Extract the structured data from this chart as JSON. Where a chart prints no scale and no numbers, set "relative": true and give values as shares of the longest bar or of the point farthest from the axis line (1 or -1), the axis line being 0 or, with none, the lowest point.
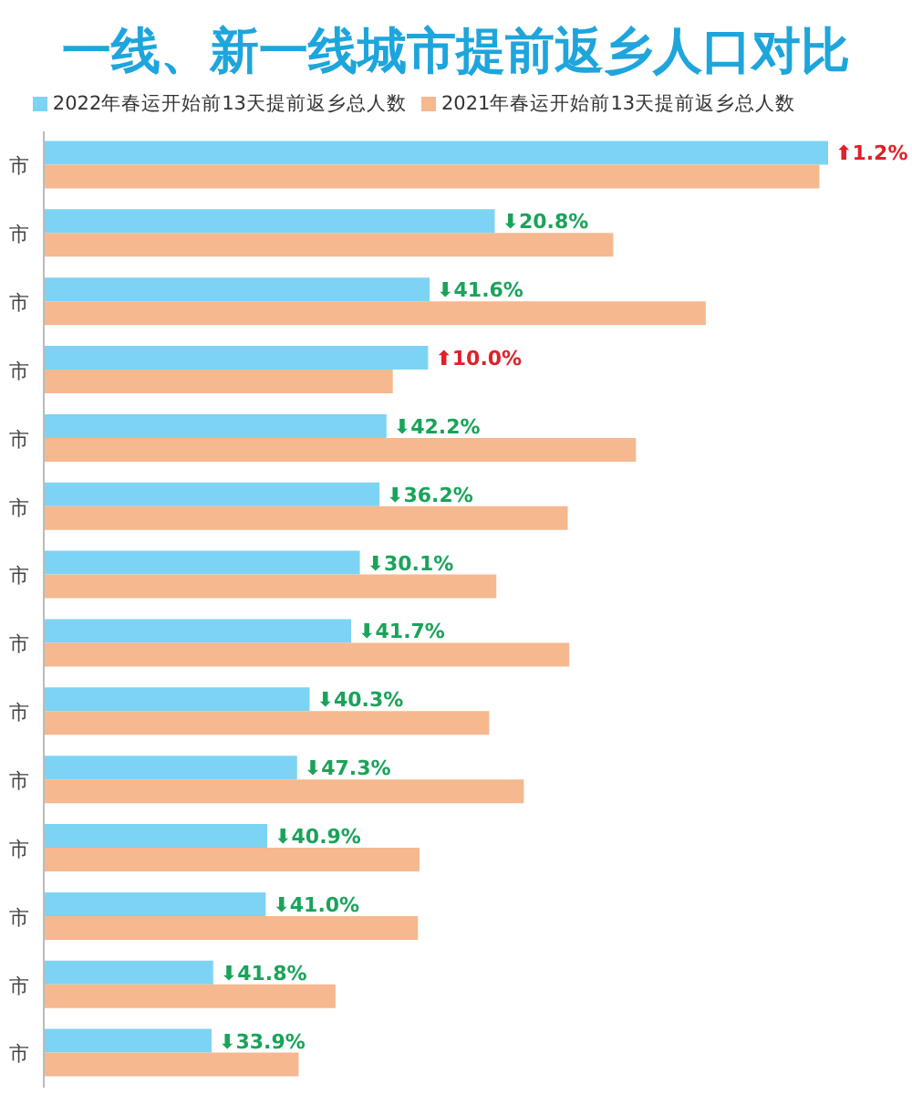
{
  "chart_data": {
    "type": "bar",
    "orientation": "horizontal",
    "relative": true,
    "title": "一线、新一线城市提前返乡人口对比",
    "legend": "top",
    "annotations": [
      "⬆1.2%",
      "⬇20.8%",
      "⬇41.6%",
      "⬆10.0%",
      "⬇42.2%",
      "⬇36.2%",
      "⬇30.1%",
      "⬇41.7%",
      "⬇40.3%",
      "⬇47.3%",
      "⬇40.9%",
      "⬇41.0%",
      "⬇41.8%",
      "⬇33.9%"
    ],
    "categories": [
      "市",
      "市",
      "市",
      "市",
      "市",
      "市",
      "市",
      "市",
      "市",
      "市",
      "市",
      "市",
      "市",
      "市"
    ],
    "series": [
      {
        "name": "2022年春运开始前13天提前返乡总人数",
        "color": "#7dd3f3",
        "values": [
          1.0,
          0.575,
          0.492,
          0.49,
          0.437,
          0.428,
          0.403,
          0.392,
          0.339,
          0.323,
          0.285,
          0.283,
          0.216,
          0.214
        ]
      },
      {
        "name": "2021年春运开始前13天提前返乡总人数",
        "color": "#f5b88f",
        "values": [
          0.989,
          0.726,
          0.844,
          0.445,
          0.755,
          0.668,
          0.577,
          0.67,
          0.568,
          0.612,
          0.479,
          0.477,
          0.372,
          0.325
        ]
      }
    ]
  }
}
